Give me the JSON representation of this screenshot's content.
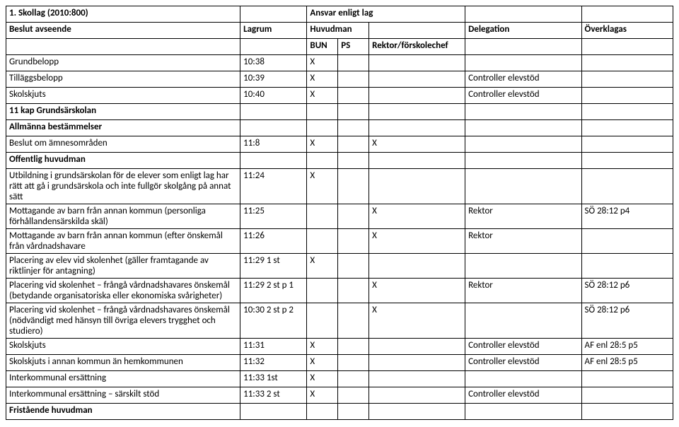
{
  "title_left": "1. Skollag (2010:800)",
  "title_right": "Ansvar enligt lag",
  "header": {
    "beslut": "Beslut avseende",
    "lagrum": "Lagrum",
    "huvudman": "Huvudman",
    "delegation": "Delegation",
    "overklagas": "Överklagas",
    "bun": "BUN",
    "ps": "PS",
    "rektor": "Rektor/förskolechef"
  },
  "rows": [
    {
      "c0": "Grundbelopp",
      "c1": "10:38",
      "c2": "X",
      "c3": "",
      "c4": "",
      "c5": "",
      "c6": ""
    },
    {
      "c0": "Tilläggsbelopp",
      "c1": "10:39",
      "c2": "X",
      "c3": "",
      "c4": "",
      "c5": "Controller elevstöd",
      "c6": ""
    },
    {
      "c0": "Skolskjuts",
      "c1": "10:40",
      "c2": "X",
      "c3": "",
      "c4": "",
      "c5": "Controller elevstöd",
      "c6": ""
    },
    {
      "c0": "11 kap Grundsärskolan",
      "bold": true,
      "c1": "",
      "c2": "",
      "c3": "",
      "c4": "",
      "c5": "",
      "c6": ""
    },
    {
      "c0": "Allmänna bestämmelser",
      "bold": true,
      "c1": "",
      "c2": "",
      "c3": "",
      "c4": "",
      "c5": "",
      "c6": ""
    },
    {
      "c0": "Beslut om ämnesområden",
      "c1": "11:8",
      "c2": "X",
      "c3": "",
      "c4": "X",
      "c5": "",
      "c6": ""
    },
    {
      "c0": "Offentlig huvudman",
      "bold": true,
      "c1": "",
      "c2": "",
      "c3": "",
      "c4": "",
      "c5": "",
      "c6": ""
    },
    {
      "c0": "Utbildning i grundsärskolan för de elever som enligt lag har rätt att gå i grundsärskola och inte fullgör skolgång på annat sätt",
      "multiline": true,
      "c1": "11:24",
      "c2": "X",
      "c3": "",
      "c4": "",
      "c5": "",
      "c6": ""
    },
    {
      "c0": "Mottagande av barn från annan kommun (personliga förhållandensärskilda skäl)",
      "multiline": true,
      "c1": "11:25",
      "c2": "",
      "c3": "",
      "c4": "X",
      "c5": "Rektor",
      "c6": "SÖ 28:12 p4"
    },
    {
      "c0": "Mottagande av barn från annan kommun (efter önskemål från vårdnadshavare",
      "multiline": true,
      "c1": "11:26",
      "c2": "",
      "c3": "",
      "c4": "X",
      "c5": "Rektor",
      "c6": ""
    },
    {
      "c0": "Placering av elev vid skolenhet (gäller framtagande av riktlinjer för antagning)",
      "multiline": true,
      "c1": "11:29 1 st",
      "c2": "X",
      "c3": "",
      "c4": "",
      "c5": "",
      "c6": ""
    },
    {
      "c0": "Placering vid skolenhet – frångå vårdnadshavares önskemål (betydande organisatoriska eller ekonomiska svårigheter)",
      "multiline": true,
      "c1": "11:29 2 st p 1",
      "c1multi": true,
      "c2": "",
      "c3": "",
      "c4": "X",
      "c5": "Rektor",
      "c6": "SÖ 28:12 p6"
    },
    {
      "c0": "Placering vid skolenhet – frångå vårdnadshavares önskemål (nödvändigt med hänsyn till övriga elevers trygghet och studiero)",
      "multiline": true,
      "c1": "10:30 2 st p 2",
      "c1multi": true,
      "c2": "",
      "c3": "",
      "c4": "X",
      "c5": "",
      "c6": "SÖ 28:12 p6"
    },
    {
      "c0": "Skolskjuts",
      "c1": "11:31",
      "c2": "X",
      "c3": "",
      "c4": "",
      "c5": "Controller elevstöd",
      "c6": "AF enl 28:5 p5"
    },
    {
      "c0": "Skolskjuts i annan kommun än hemkommunen",
      "c1": "11:32",
      "c2": "X",
      "c3": "",
      "c4": "",
      "c5": "Controller elevstöd",
      "c6": "AF enl 28:5 p5"
    },
    {
      "c0": "Interkommunal ersättning",
      "c1": "11:33 1st",
      "c2": "X",
      "c3": "",
      "c4": "",
      "c5": "",
      "c6": ""
    },
    {
      "c0": "Interkommunal ersättning – särskilt stöd",
      "c1": "11:33 2 st",
      "c2": "X",
      "c3": "",
      "c4": "",
      "c5": "Controller elevstöd",
      "c6": ""
    },
    {
      "c0": "Fristående huvudman",
      "bold": true,
      "c1": "",
      "c2": "",
      "c3": "",
      "c4": "",
      "c5": "",
      "c6": ""
    }
  ],
  "style": {
    "bg": "#ffffff",
    "border": "#000000",
    "text": "#000000",
    "font_size": 13
  }
}
